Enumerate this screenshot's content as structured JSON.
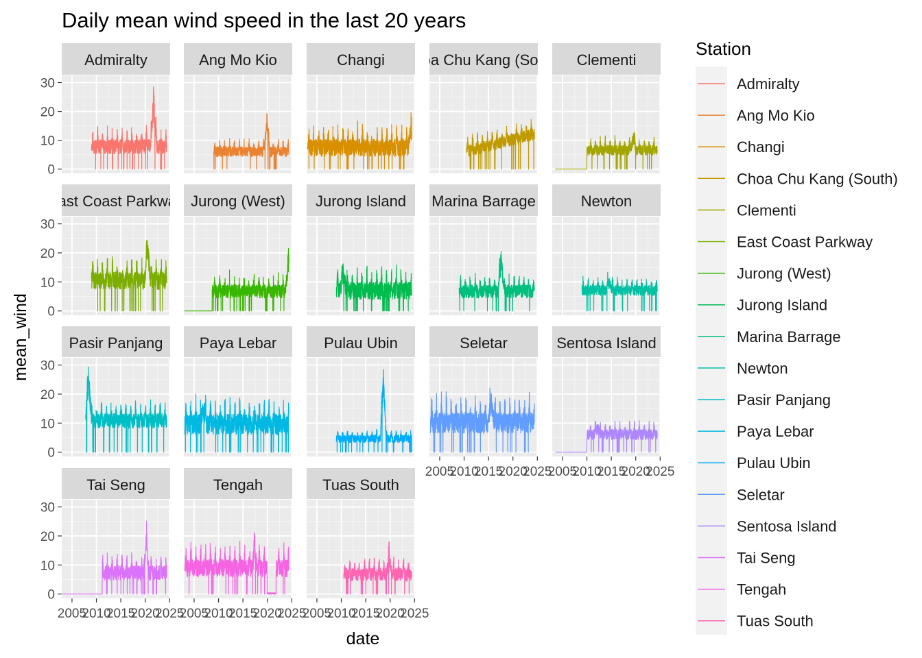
{
  "chart_data": {
    "type": "line",
    "title": "Daily mean wind speed in the last 20 years",
    "xlabel": "date",
    "ylabel": "mean_wind",
    "x_ticks": [
      "2005",
      "2010",
      "2015",
      "2020",
      "2025"
    ],
    "y_ticks": [
      0,
      10,
      20,
      30
    ],
    "xlim": [
      2002.9,
      2025.1
    ],
    "ylim": [
      -1.5,
      32.5
    ],
    "grid": true,
    "legend": {
      "title": "Station",
      "position": "right"
    },
    "series": [
      {
        "name": "Admiralty",
        "color": "#F8766D",
        "start": 2009.0,
        "end": 2024.4,
        "base": 7,
        "amp": 5,
        "zero_until": null,
        "dips": [
          2013.3,
          2015.6,
          2017.4,
          2023.3
        ],
        "spike": [
          2021.7,
          20
        ]
      },
      {
        "name": "Ang Mo Kio",
        "color": "#EA8331",
        "start": 2009.0,
        "end": 2024.4,
        "base": 5.5,
        "amp": 3.5,
        "zero_until": null,
        "dips": [
          2020.5,
          2021.4,
          2021.8
        ],
        "spike": [
          2019.9,
          13
        ]
      },
      {
        "name": "Changi",
        "color": "#D89000",
        "start": 2003.1,
        "end": 2024.4,
        "base": 6.5,
        "amp": 6,
        "zero_until": null,
        "dips": [
          2011.2,
          2016.3,
          2022.8
        ],
        "spike": [
          2024.3,
          8
        ]
      },
      {
        "name": "Choa Chu Kang (South)",
        "color": "#C09B00",
        "start": 2010.5,
        "end": 2024.4,
        "base": 5.5,
        "amp": 4,
        "zero_until": null,
        "dips": [
          2019.8,
          2021.2
        ],
        "trend": 6
      },
      {
        "name": "Clementi",
        "color": "#A3A500",
        "start": 2003.5,
        "end": 2024.4,
        "base": 6,
        "amp": 3.5,
        "zero_until": 2010.0,
        "dips": [
          2013.5,
          2016.2,
          2018.2
        ],
        "spike": [
          2019.5,
          5
        ]
      },
      {
        "name": "East Coast Parkway",
        "color": "#7CAE00",
        "start": 2009.0,
        "end": 2024.4,
        "base": 9.5,
        "amp": 6,
        "zero_until": null,
        "dips": [
          2011.7,
          2015.6,
          2017.5,
          2021.7
        ],
        "spike": [
          2020.5,
          14
        ]
      },
      {
        "name": "Jurong (West)",
        "color": "#39B600",
        "start": 2003.0,
        "end": 2024.4,
        "base": 6,
        "amp": 4.5,
        "zero_until": 2008.7,
        "dips": [
          2013.2,
          2016.3,
          2019.9
        ],
        "spike": [
          2024.3,
          12
        ]
      },
      {
        "name": "Jurong Island",
        "color": "#00BB4E",
        "start": 2009.0,
        "end": 2024.4,
        "base": 6,
        "amp": 6,
        "zero_until": null,
        "dips": [
          2012.6,
          2016.2,
          2018.7,
          2022.7
        ],
        "spike": [
          2010.4,
          8
        ]
      },
      {
        "name": "Marina Barrage",
        "color": "#00BF7D",
        "start": 2009.0,
        "end": 2024.4,
        "base": 6,
        "amp": 4.5,
        "zero_until": null,
        "dips": [
          2016.6,
          2018.6,
          2019.3
        ],
        "spike": [
          2017.6,
          14
        ]
      },
      {
        "name": "Newton",
        "color": "#00C1A3",
        "start": 2009.0,
        "end": 2024.4,
        "base": 6.5,
        "amp": 3.5,
        "zero_until": null,
        "dips": [
          2015.6,
          2017.3,
          2021.7,
          2023.3
        ],
        "spike": [
          2014.6,
          4
        ]
      },
      {
        "name": "Pasir Panjang",
        "color": "#00BFC4",
        "start": 2007.8,
        "end": 2024.4,
        "base": 10,
        "amp": 5,
        "zero_until": null,
        "dips": [
          2008.0,
          2011.5,
          2020.7,
          2022.4
        ],
        "spike": [
          2008.4,
          19
        ]
      },
      {
        "name": "Paya Lebar",
        "color": "#00B9E3",
        "start": 2003.1,
        "end": 2024.4,
        "base": 8.5,
        "amp": 7,
        "zero_until": null,
        "dips": [
          2006.4,
          2012.5,
          2020.9,
          2022.3
        ],
        "spike": [
          2006.9,
          6
        ]
      },
      {
        "name": "Pulau Ubin",
        "color": "#00ADFA",
        "start": 2009.0,
        "end": 2024.4,
        "base": 4.2,
        "amp": 2.5,
        "zero_until": null,
        "dips": [
          2019.2,
          2020.7,
          2022.6
        ],
        "spike": [
          2018.6,
          26
        ]
      },
      {
        "name": "Seletar",
        "color": "#619CFF",
        "start": 2003.1,
        "end": 2024.4,
        "base": 9,
        "amp": 7,
        "zero_until": null,
        "dips": [
          2009.6,
          2011.4,
          2012.1
        ],
        "spike": [
          2015.6,
          8
        ]
      },
      {
        "name": "Sentosa Island",
        "color": "#AE87FF",
        "start": 2003.5,
        "end": 2024.4,
        "base": 5.5,
        "amp": 3.5,
        "zero_until": 2010.0,
        "dips": [
          2013.3,
          2016.2,
          2019.2
        ],
        "spike": [
          2012.2,
          3
        ]
      },
      {
        "name": "Tai Seng",
        "color": "#DB72FB",
        "start": 2003.0,
        "end": 2024.4,
        "base": 6.5,
        "amp": 5,
        "zero_until": 2011.2,
        "dips": [
          2019.8,
          2021.6,
          2022.3
        ],
        "spike": [
          2020.2,
          12
        ]
      },
      {
        "name": "Tengah",
        "color": "#F564E3",
        "start": 2003.1,
        "end": 2024.4,
        "base": 8,
        "amp": 6,
        "zero_until": null,
        "dips": [
          2020.0,
          2020.5,
          2021.6
        ],
        "gap": [
          2020.0,
          2021.8
        ],
        "spike": [
          2017.4,
          7
        ]
      },
      {
        "name": "Tuas South",
        "color": "#FF64B0",
        "start": 2010.5,
        "end": 2024.4,
        "base": 6,
        "amp": 4.5,
        "zero_until": null,
        "dips": [
          2014.3,
          2017.2,
          2021.0
        ],
        "spike": [
          2019.8,
          7
        ]
      },
      {
        "name": "Station",
        "color": "#FF6C91",
        "start": 2010.5,
        "end": 2024.4,
        "base": 6,
        "amp": 4.5,
        "zero_until": null,
        "dips": [],
        "hidden": true
      }
    ]
  }
}
